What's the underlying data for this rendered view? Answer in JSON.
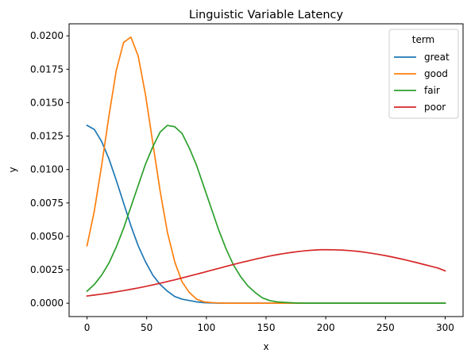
{
  "chart_data": {
    "type": "line",
    "title": "Linguistic Variable Latency",
    "xlabel": "x",
    "ylabel": "y",
    "xlim": [
      -15,
      315
    ],
    "ylim": [
      -0.001,
      0.0209
    ],
    "xticks": [
      0,
      50,
      100,
      150,
      200,
      250,
      300
    ],
    "xtick_labels": [
      "0",
      "50",
      "100",
      "150",
      "200",
      "250",
      "300"
    ],
    "yticks": [
      0,
      0.0025,
      0.005,
      0.0075,
      0.01,
      0.0125,
      0.015,
      0.0175,
      0.02
    ],
    "ytick_labels": [
      "0.0000",
      "0.0025",
      "0.0050",
      "0.0075",
      "0.0100",
      "0.0125",
      "0.0150",
      "0.0175",
      "0.0200"
    ],
    "grid": false,
    "legend": {
      "title": "term",
      "placement": "top-right"
    },
    "x": [
      0,
      6.1224,
      12.2449,
      18.3673,
      24.4898,
      30.6122,
      36.7347,
      42.8571,
      48.9796,
      55.102,
      61.2245,
      67.3469,
      73.4694,
      79.5918,
      85.7143,
      91.8367,
      97.9592,
      104.0816,
      110.2041,
      116.3265,
      122.449,
      128.5714,
      134.6939,
      140.8163,
      146.9388,
      153.0612,
      159.1837,
      165.3061,
      171.4286,
      177.551,
      183.6735,
      189.7959,
      195.9184,
      202.0408,
      208.1633,
      214.2857,
      220.4082,
      226.5306,
      232.6531,
      238.7755,
      244.898,
      251.0204,
      257.1429,
      263.2653,
      269.3878,
      275.5102,
      281.6327,
      287.7551,
      293.8776,
      300
    ],
    "series": [
      {
        "name": "great",
        "color": "#1f77b4",
        "values": [
          0.0133,
          0.013,
          0.0121,
          0.0108,
          0.0092,
          0.0075,
          0.0058,
          0.0043,
          0.0031,
          0.0021,
          0.0014,
          0.0009,
          0.0005,
          0.0003,
          0.0002,
          0.0001,
          4e-05,
          2e-05,
          1e-05,
          0,
          0,
          0,
          0,
          0,
          0,
          0,
          0,
          0,
          0,
          0,
          0,
          0,
          0,
          0,
          0,
          0,
          0,
          0,
          0,
          0,
          0,
          0,
          0,
          0,
          0,
          0,
          0,
          0,
          0,
          0
        ]
      },
      {
        "name": "good",
        "color": "#ff7f0e",
        "values": [
          0.0043,
          0.0069,
          0.0103,
          0.014,
          0.0174,
          0.0195,
          0.0199,
          0.0185,
          0.0156,
          0.012,
          0.0084,
          0.0053,
          0.0031,
          0.0016,
          0.0008,
          0.0003,
          0.0001,
          5e-05,
          2e-05,
          0,
          0,
          0,
          0,
          0,
          0,
          0,
          0,
          0,
          0,
          0,
          0,
          0,
          0,
          0,
          0,
          0,
          0,
          0,
          0,
          0,
          0,
          0,
          0,
          0,
          0,
          0,
          0,
          0,
          0,
          0
        ]
      },
      {
        "name": "fair",
        "color": "#2ca02c",
        "values": [
          0.0009,
          0.0014,
          0.0021,
          0.003,
          0.0042,
          0.0056,
          0.0072,
          0.0088,
          0.0104,
          0.0117,
          0.0128,
          0.0133,
          0.0132,
          0.0127,
          0.0116,
          0.0103,
          0.0087,
          0.0071,
          0.0055,
          0.0041,
          0.0029,
          0.002,
          0.0013,
          0.0008,
          0.0004,
          0.0002,
          0.0001,
          6e-05,
          3e-05,
          1e-05,
          0,
          0,
          0,
          0,
          0,
          0,
          0,
          0,
          0,
          0,
          0,
          0,
          0,
          0,
          0,
          0,
          0,
          0,
          0,
          0
        ]
      },
      {
        "name": "poor",
        "color": "#d62728",
        "values": [
          0.00054,
          0.00061,
          0.00068,
          0.00076,
          0.00085,
          0.00094,
          0.00104,
          0.00114,
          0.00125,
          0.00137,
          0.00149,
          0.00162,
          0.00175,
          0.00189,
          0.00203,
          0.00217,
          0.00231,
          0.00246,
          0.0026,
          0.00275,
          0.00289,
          0.00303,
          0.00316,
          0.00329,
          0.00341,
          0.00353,
          0.00363,
          0.00372,
          0.0038,
          0.00387,
          0.00393,
          0.00397,
          0.004,
          0.004,
          0.00399,
          0.00397,
          0.00393,
          0.00388,
          0.00381,
          0.00373,
          0.00364,
          0.00354,
          0.00343,
          0.00331,
          0.00318,
          0.00305,
          0.00291,
          0.00277,
          0.00263,
          0.00242
        ]
      }
    ]
  }
}
